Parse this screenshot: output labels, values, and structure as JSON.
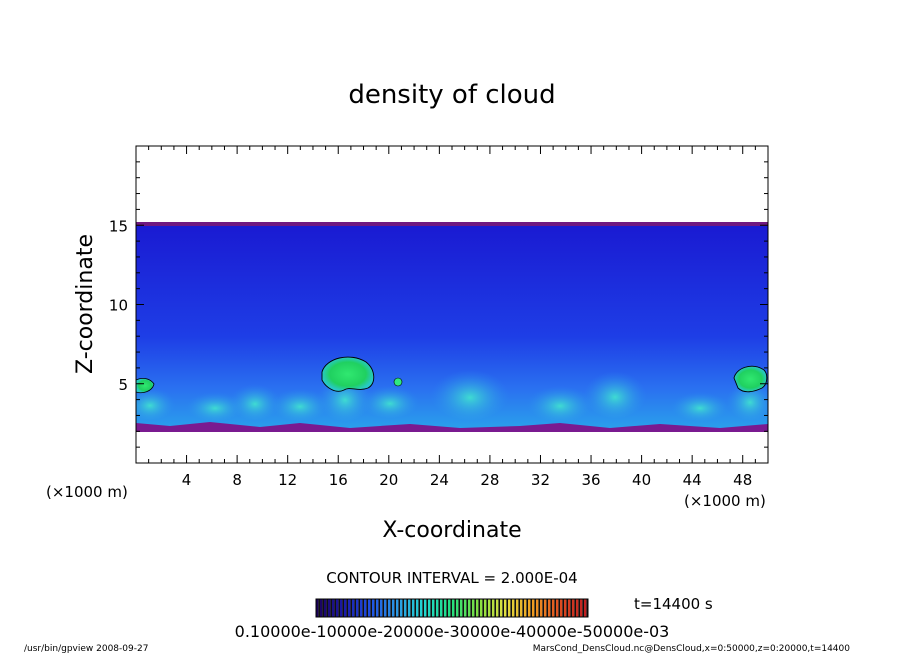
{
  "chart_data": {
    "type": "heatmap",
    "title": "density of cloud",
    "xlabel": "X-coordinate",
    "ylabel": "Z-coordinate",
    "x_unit": "(×1000 m)",
    "y_unit": "(×1000 m)",
    "xlim": [
      0,
      50
    ],
    "ylim": [
      0,
      20
    ],
    "x_ticks": [
      4,
      8,
      12,
      16,
      20,
      24,
      28,
      32,
      36,
      40,
      44,
      48
    ],
    "y_ticks": [
      5,
      10,
      15
    ],
    "contour_interval_label": "CONTOUR INTERVAL = 2.000E-04",
    "time_label": "t=14400 s",
    "colorbar_labels_text": "0.10000e-10000e-20000e-30000e-40000e-50000e-03",
    "colorbar_colors": [
      "#1a005a",
      "#1a1aaa",
      "#1e50e6",
      "#2a9ae6",
      "#20d8d0",
      "#20e080",
      "#80e040",
      "#e0e040",
      "#f0a020",
      "#e05020",
      "#c02020"
    ],
    "field_colors": {
      "top_band": "#701880",
      "upper": "#1a1ad2",
      "mid": "#1e46e6",
      "lower": "#2a7cf0",
      "cyan": "#28c8dc",
      "green": "#20d860",
      "base": "#7a1a90"
    },
    "cloud_layer_top": 15,
    "cloud_layer_base": 2.3,
    "cloud_cells": [
      {
        "x": 0.8,
        "z": 5.0
      },
      {
        "x": 16.5,
        "z": 5.6
      },
      {
        "x": 48.5,
        "z": 5.2
      }
    ]
  },
  "footer": {
    "left": "/usr/bin/gpview   2008-09-27",
    "right": "MarsCond_DensCloud.nc@DensCloud,x=0:50000,z=0:20000,t=14400"
  }
}
